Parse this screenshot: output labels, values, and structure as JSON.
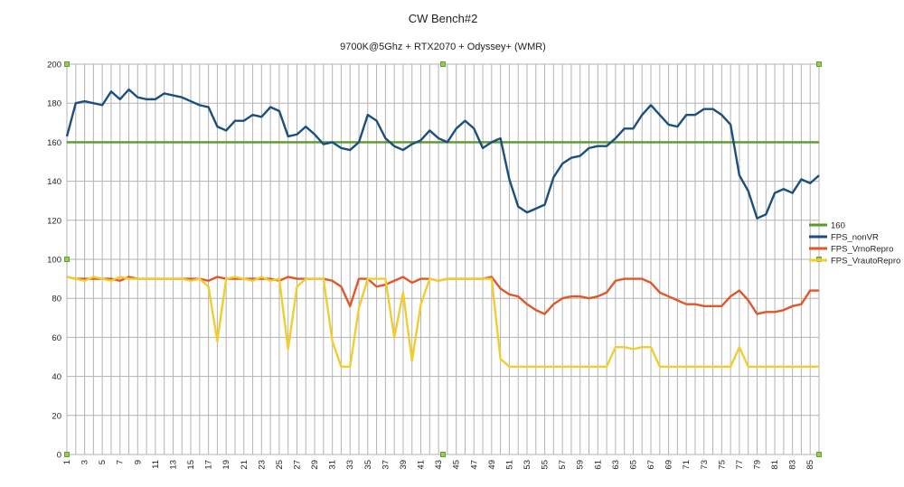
{
  "chart_data": {
    "type": "line",
    "title": "CW Bench#2",
    "subtitle": "9700K@5Ghz + RTX2070 + Odyssey+ (WMR)",
    "xlabel": "",
    "ylabel": "",
    "ylim": [
      0,
      200
    ],
    "yticks": [
      "0",
      "20",
      "40",
      "60",
      "80",
      "100",
      "120",
      "140",
      "160",
      "180",
      "200"
    ],
    "x": [
      1,
      2,
      3,
      4,
      5,
      6,
      7,
      8,
      9,
      10,
      11,
      12,
      13,
      14,
      15,
      16,
      17,
      18,
      19,
      20,
      21,
      22,
      23,
      24,
      25,
      26,
      27,
      28,
      29,
      30,
      31,
      32,
      33,
      34,
      35,
      36,
      37,
      38,
      39,
      40,
      41,
      42,
      43,
      44,
      45,
      46,
      47,
      48,
      49,
      50,
      51,
      52,
      53,
      54,
      55,
      56,
      57,
      58,
      59,
      60,
      61,
      62,
      63,
      64,
      65,
      66,
      67,
      68,
      69,
      70,
      71,
      72,
      73,
      74,
      75,
      76,
      77,
      78,
      79,
      80,
      81,
      82,
      83,
      84,
      85,
      86
    ],
    "xticks": [
      "1",
      "3",
      "5",
      "7",
      "9",
      "11",
      "13",
      "15",
      "17",
      "19",
      "21",
      "23",
      "25",
      "27",
      "29",
      "31",
      "33",
      "35",
      "37",
      "39",
      "41",
      "43",
      "45",
      "47",
      "49",
      "51",
      "53",
      "55",
      "57",
      "59",
      "61",
      "63",
      "65",
      "67",
      "69",
      "71",
      "73",
      "75",
      "77",
      "79",
      "81",
      "83",
      "85"
    ],
    "grid": true,
    "legend_position": "right",
    "series": [
      {
        "name": "160",
        "color": "#5a9a2a",
        "values": [
          160,
          160,
          160,
          160,
          160,
          160,
          160,
          160,
          160,
          160,
          160,
          160,
          160,
          160,
          160,
          160,
          160,
          160,
          160,
          160,
          160,
          160,
          160,
          160,
          160,
          160,
          160,
          160,
          160,
          160,
          160,
          160,
          160,
          160,
          160,
          160,
          160,
          160,
          160,
          160,
          160,
          160,
          160,
          160,
          160,
          160,
          160,
          160,
          160,
          160,
          160,
          160,
          160,
          160,
          160,
          160,
          160,
          160,
          160,
          160,
          160,
          160,
          160,
          160,
          160,
          160,
          160,
          160,
          160,
          160,
          160,
          160,
          160,
          160,
          160,
          160,
          160,
          160,
          160,
          160,
          160,
          160,
          160,
          160,
          160,
          160
        ]
      },
      {
        "name": "FPS_nonVR",
        "color": "#1a4f7e",
        "values": [
          163,
          180,
          181,
          180,
          179,
          186,
          182,
          187,
          183,
          182,
          182,
          185,
          184,
          183,
          181,
          179,
          178,
          168,
          166,
          171,
          171,
          174,
          173,
          178,
          176,
          163,
          164,
          168,
          164,
          159,
          160,
          157,
          156,
          160,
          174,
          171,
          162,
          158,
          156,
          159,
          161,
          166,
          162,
          160,
          167,
          171,
          167,
          157,
          160,
          162,
          141,
          127,
          124,
          126,
          128,
          142,
          149,
          152,
          153,
          157,
          158,
          158,
          162,
          167,
          167,
          174,
          179,
          174,
          169,
          168,
          174,
          174,
          177,
          177,
          174,
          169,
          143,
          135,
          121,
          123,
          134,
          136,
          134,
          141,
          139,
          143
        ]
      },
      {
        "name": "FPS_VrnoRepro",
        "color": "#e0572a",
        "values": [
          91,
          90,
          90,
          90,
          90,
          90,
          89,
          91,
          90,
          90,
          90,
          90,
          90,
          90,
          90,
          90,
          89,
          91,
          90,
          90,
          90,
          90,
          90,
          90,
          89,
          91,
          90,
          90,
          90,
          90,
          89,
          86,
          76,
          90,
          90,
          86,
          87,
          89,
          91,
          88,
          90,
          90,
          89,
          90,
          90,
          90,
          90,
          90,
          91,
          85,
          82,
          81,
          77,
          74,
          72,
          77,
          80,
          81,
          81,
          80,
          81,
          83,
          89,
          90,
          90,
          90,
          88,
          83,
          81,
          79,
          77,
          77,
          76,
          76,
          76,
          81,
          84,
          79,
          72,
          73,
          73,
          74,
          76,
          77,
          84,
          84
        ]
      },
      {
        "name": "FPS_VrautoRepro",
        "color": "#f2cd30",
        "values": [
          91,
          90,
          89,
          91,
          90,
          89,
          91,
          90,
          90,
          90,
          90,
          90,
          90,
          90,
          89,
          90,
          86,
          58,
          90,
          91,
          90,
          89,
          91,
          89,
          90,
          54,
          86,
          90,
          90,
          90,
          58,
          45,
          45,
          75,
          90,
          90,
          90,
          60,
          83,
          48,
          77,
          90,
          89,
          90,
          90,
          90,
          90,
          90,
          90,
          49,
          45,
          45,
          45,
          45,
          45,
          45,
          45,
          45,
          45,
          45,
          45,
          45,
          55,
          55,
          54,
          55,
          55,
          45,
          45,
          45,
          45,
          45,
          45,
          45,
          45,
          45,
          55,
          45,
          45,
          45,
          45,
          45,
          45,
          45,
          45,
          45
        ]
      }
    ]
  }
}
